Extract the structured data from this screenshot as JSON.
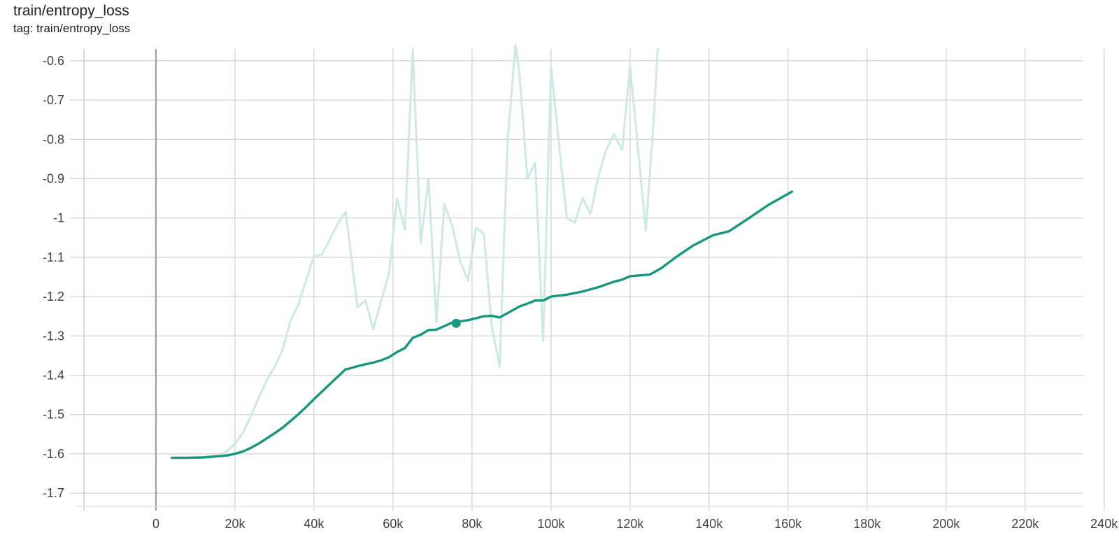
{
  "header": {
    "title": "train/entropy_loss",
    "subtitle": "tag: train/entropy_loss"
  },
  "colors": {
    "smoothed": "#17977f",
    "raw": "#cde9e4",
    "grid": "#d6d6d6",
    "zero_axis": "#9e9e9e"
  },
  "chart_data": {
    "type": "line",
    "title": "train/entropy_loss",
    "xlabel": "",
    "ylabel": "",
    "xlim": [
      -20000,
      242000
    ],
    "ylim": [
      -1.73,
      -0.57
    ],
    "grid": true,
    "x_ticks": [
      0,
      20000,
      40000,
      60000,
      80000,
      100000,
      120000,
      140000,
      160000,
      180000,
      200000,
      220000,
      240000
    ],
    "x_tick_labels": [
      "0",
      "20k",
      "40k",
      "60k",
      "80k",
      "100k",
      "120k",
      "140k",
      "160k",
      "180k",
      "200k",
      "220k",
      "240k"
    ],
    "y_ticks": [
      -0.6,
      -0.7,
      -0.8,
      -0.9,
      -1.0,
      -1.1,
      -1.2,
      -1.3,
      -1.4,
      -1.5,
      -1.6,
      -1.7
    ],
    "y_tick_labels": [
      "-0.6",
      "-0.7",
      "-0.8",
      "-0.9",
      "-1",
      "-1.1",
      "-1.2",
      "-1.3",
      "-1.4",
      "-1.5",
      "-1.6",
      "-1.7"
    ],
    "series": [
      {
        "style": "raw",
        "x": [
          4000,
          8000,
          12000,
          14000,
          16000,
          18000,
          20000,
          22000,
          24000,
          26000,
          28000,
          30000,
          32000,
          34000,
          36000,
          38000,
          40000,
          42000,
          44000,
          46000,
          48000,
          49000,
          51000,
          53000,
          55000,
          57000,
          59000,
          61000,
          63000,
          65000,
          67000,
          69000,
          71000,
          73000,
          75000,
          77000,
          79000,
          81000,
          83000,
          85000,
          87000,
          89000,
          91000,
          92000,
          94000,
          96000,
          98000,
          100000,
          102000,
          104000,
          106000,
          108000,
          110000,
          112000,
          114000,
          116000,
          118000,
          120000,
          122000,
          124000,
          126000,
          127000
        ],
        "y": [
          -1.61,
          -1.61,
          -1.609,
          -1.607,
          -1.602,
          -1.593,
          -1.574,
          -1.547,
          -1.505,
          -1.458,
          -1.413,
          -1.38,
          -1.337,
          -1.263,
          -1.222,
          -1.16,
          -1.097,
          -1.093,
          -1.055,
          -1.015,
          -0.985,
          -1.06,
          -1.228,
          -1.209,
          -1.283,
          -1.21,
          -1.14,
          -0.95,
          -1.03,
          -0.57,
          -1.063,
          -0.9,
          -1.265,
          -0.965,
          -1.02,
          -1.11,
          -1.16,
          -1.025,
          -1.04,
          -1.275,
          -1.378,
          -0.81,
          -0.56,
          -0.63,
          -0.9,
          -0.86,
          -1.313,
          -0.615,
          -0.81,
          -1.0,
          -1.012,
          -0.95,
          -0.99,
          -0.894,
          -0.826,
          -0.786,
          -0.828,
          -0.615,
          -0.82,
          -1.032,
          -0.75,
          -0.57
        ]
      },
      {
        "style": "smoothed",
        "x": [
          4000,
          8000,
          12000,
          16000,
          18000,
          20000,
          22000,
          24000,
          26000,
          28000,
          30000,
          32000,
          34000,
          36000,
          38000,
          40000,
          42000,
          44000,
          46000,
          48000,
          49000,
          51000,
          53000,
          55000,
          57000,
          59000,
          61000,
          63000,
          65000,
          67000,
          69000,
          71000,
          73000,
          75000,
          77000,
          79000,
          81000,
          83000,
          85000,
          87000,
          89000,
          91000,
          92000,
          94000,
          96000,
          98000,
          100000,
          104000,
          108000,
          112000,
          116000,
          118000,
          120000,
          125000,
          128000,
          132000,
          136000,
          141000,
          145000,
          150000,
          155000,
          161000
        ],
        "y": [
          -1.61,
          -1.61,
          -1.609,
          -1.606,
          -1.604,
          -1.6,
          -1.594,
          -1.585,
          -1.574,
          -1.561,
          -1.548,
          -1.534,
          -1.517,
          -1.5,
          -1.481,
          -1.461,
          -1.442,
          -1.423,
          -1.404,
          -1.385,
          -1.383,
          -1.377,
          -1.372,
          -1.368,
          -1.362,
          -1.354,
          -1.341,
          -1.331,
          -1.305,
          -1.297,
          -1.285,
          -1.284,
          -1.275,
          -1.266,
          -1.263,
          -1.26,
          -1.255,
          -1.25,
          -1.249,
          -1.253,
          -1.242,
          -1.231,
          -1.225,
          -1.218,
          -1.21,
          -1.21,
          -1.2,
          -1.195,
          -1.187,
          -1.176,
          -1.162,
          -1.157,
          -1.148,
          -1.144,
          -1.127,
          -1.097,
          -1.07,
          -1.044,
          -1.034,
          -1.001,
          -0.967,
          -0.933
        ]
      }
    ],
    "highlight": {
      "x": 76000,
      "y": -1.268
    }
  }
}
